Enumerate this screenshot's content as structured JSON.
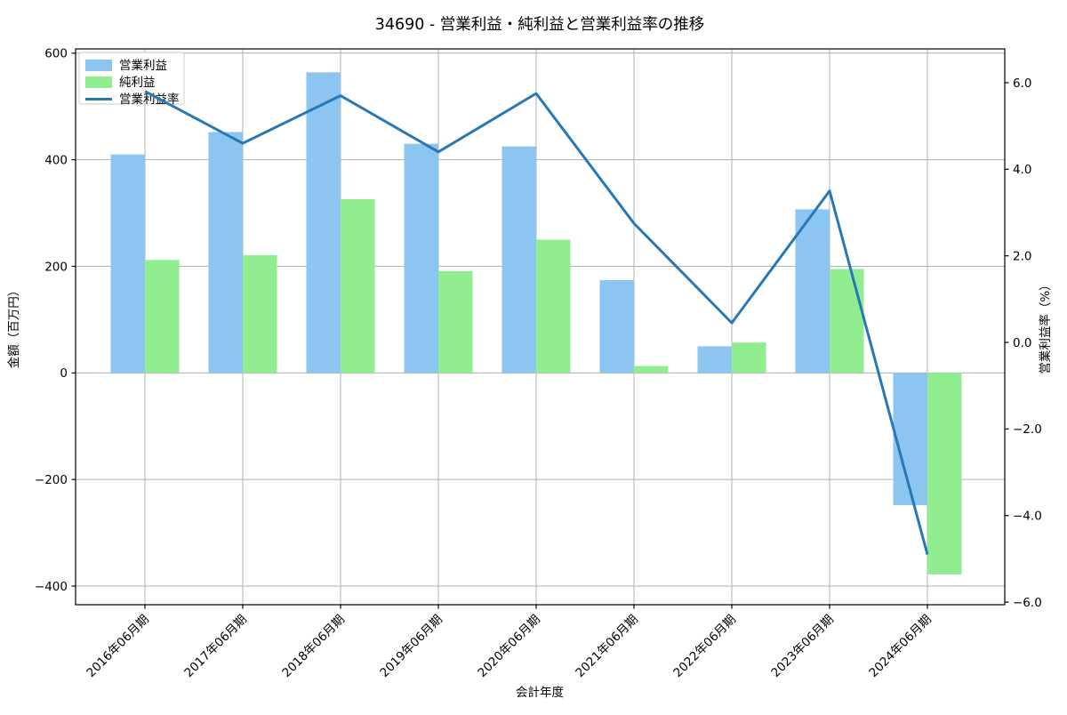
{
  "chart_data": {
    "type": "bar",
    "title": "34690 - 営業利益・純利益と営業利益率の推移",
    "categories": [
      "2016年06月期",
      "2017年06月期",
      "2018年06月期",
      "2019年06月期",
      "2020年06月期",
      "2021年06月期",
      "2022年06月期",
      "2023年06月期",
      "2024年06月期"
    ],
    "series": [
      {
        "name": "営業利益",
        "type": "bar",
        "axis": "left",
        "color": "#8cc5f0",
        "values": [
          410,
          452,
          564,
          430,
          425,
          174,
          50,
          307,
          -248
        ]
      },
      {
        "name": "純利益",
        "type": "bar",
        "axis": "left",
        "color": "#90ee90",
        "values": [
          212,
          221,
          326,
          191,
          250,
          13,
          57,
          195,
          -378
        ]
      },
      {
        "name": "営業利益率",
        "type": "line",
        "axis": "right",
        "color": "#2878b5",
        "values": [
          5.8,
          4.6,
          5.7,
          4.4,
          5.75,
          2.75,
          0.45,
          3.5,
          -4.9
        ]
      }
    ],
    "xlabel": "会計年度",
    "ylabel_left": "金額（百万円）",
    "ylabel_right": "営業利益率（%）",
    "ylim_left": [
      -435,
      608
    ],
    "ylim_right": [
      -6.06,
      6.78
    ],
    "yticks_left": [
      600,
      400,
      200,
      0,
      -200,
      -400
    ],
    "ytick_labels_left": [
      "600",
      "400",
      "200",
      "0",
      "−200",
      "−400"
    ],
    "yticks_right": [
      6,
      4,
      2,
      0,
      -2,
      -4,
      -6
    ],
    "ytick_labels_right": [
      "6.0",
      "4.0",
      "2.0",
      "0.0",
      "−2.0",
      "−4.0",
      "−6.0"
    ],
    "grid": true,
    "grid_color": "#b0b0b0",
    "frame_color": "#000000",
    "background": "#ffffff",
    "legend_position": "upper left"
  }
}
